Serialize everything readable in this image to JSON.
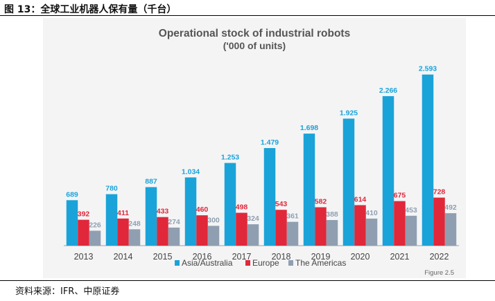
{
  "heading": "图 13：全球工业机器人保有量（千台）",
  "source": "资料来源：IFR、中原证券",
  "figure_ref": "Figure 2.5",
  "colors": {
    "asia": "#1aa3d8",
    "europe": "#e0283a",
    "americas": "#8f9fb1",
    "axis": "#9aa0a6"
  },
  "chart_data": {
    "type": "bar",
    "title": "Operational stock of industrial robots",
    "subtitle": "('000 of units)",
    "categories": [
      "2013",
      "2014",
      "2015",
      "2016",
      "2017",
      "2018",
      "2019",
      "2020",
      "2021",
      "2022"
    ],
    "series": [
      {
        "name": "Asia/Australia",
        "values": [
          689,
          780,
          887,
          1034,
          1253,
          1479,
          1698,
          1925,
          2266,
          2593
        ],
        "labels": [
          "689",
          "780",
          "887",
          "1.034",
          "1.253",
          "1.479",
          "1.698",
          "1.925",
          "2.266",
          "2.593"
        ]
      },
      {
        "name": "Europe",
        "values": [
          392,
          411,
          433,
          460,
          498,
          543,
          582,
          614,
          675,
          728
        ],
        "labels": [
          "392",
          "411",
          "433",
          "460",
          "498",
          "543",
          "582",
          "614",
          "675",
          "728"
        ]
      },
      {
        "name": "The Americas",
        "values": [
          226,
          248,
          274,
          300,
          324,
          361,
          388,
          410,
          453,
          492
        ],
        "labels": [
          "226",
          "248",
          "274",
          "300",
          "324",
          "361",
          "388",
          "410",
          "453",
          "492"
        ]
      }
    ],
    "ylim": [
      0,
      2800
    ],
    "grid": false,
    "legend_position": "bottom"
  }
}
